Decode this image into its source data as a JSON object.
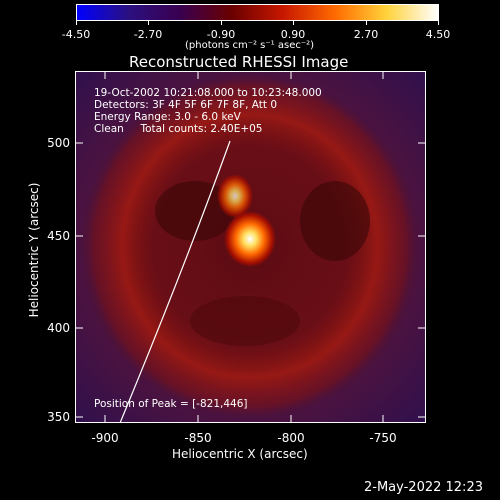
{
  "colorbar": {
    "tick_labels": [
      "-4.50",
      "-2.70",
      "-0.90",
      "0.90",
      "2.70",
      "4.50"
    ],
    "units_label": "(photons cm⁻² s⁻¹ asec⁻²)",
    "colors": [
      "#0000ff",
      "#2b1080",
      "#3a0050",
      "#6a0000",
      "#c81800",
      "#ff6a00",
      "#ffd23a",
      "#ffffff"
    ]
  },
  "plot": {
    "title": "Reconstructed RHESSI Image",
    "annotations": [
      "19-Oct-2002 10:21:08.000 to 10:23:48.000",
      "Detectors: 3F 4F 5F 6F 7F 8F, Att 0",
      "Energy Range: 3.0 - 6.0 keV",
      "Clean     Total counts: 2.40E+05"
    ],
    "peak_label": "Position of Peak = [-821,446]",
    "xlabel": "Heliocentric X (arcsec)",
    "ylabel": "Heliocentric Y (arcsec)",
    "x_ticks": [
      "-900",
      "-850",
      "-800",
      "-750"
    ],
    "y_ticks": [
      "500",
      "450",
      "400",
      "350"
    ]
  },
  "footer": {
    "timestamp": "2-May-2022 12:23"
  }
}
